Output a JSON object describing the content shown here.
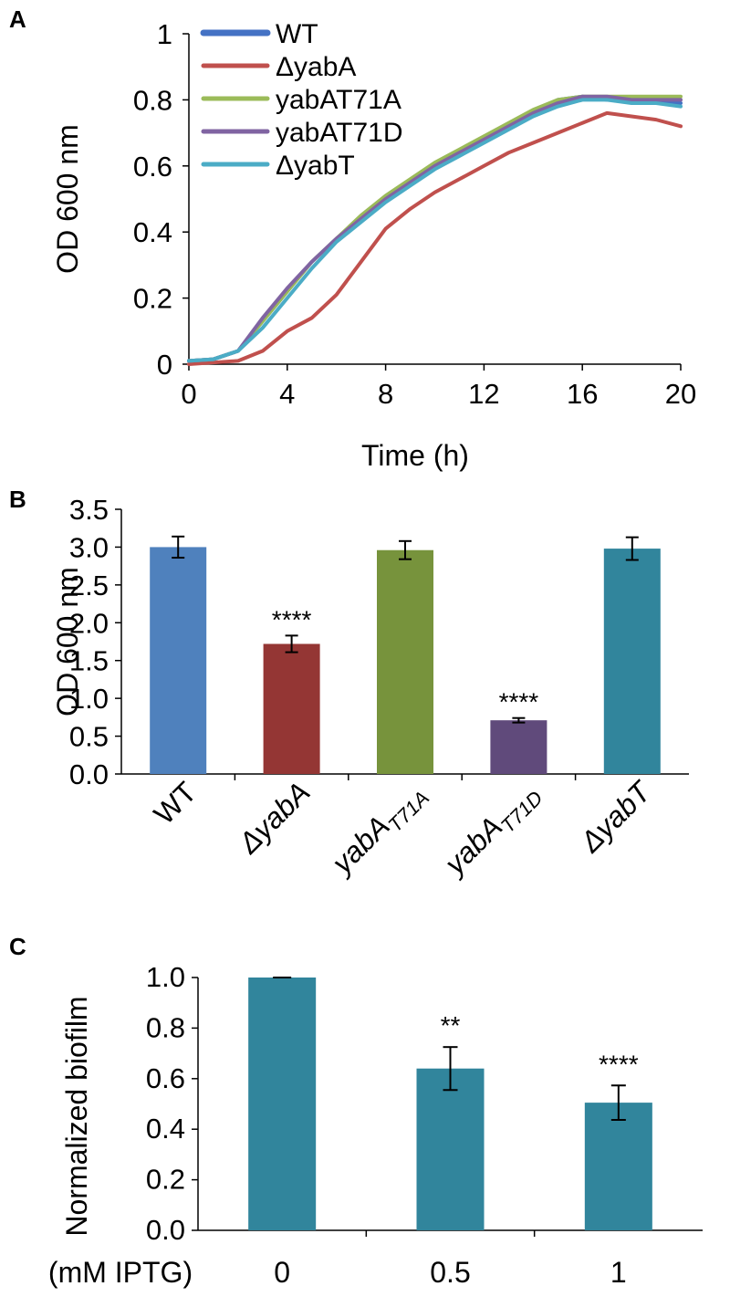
{
  "chart_data": [
    {
      "panel": "A",
      "type": "line",
      "xlabel": "Time (h)",
      "ylabel": "OD 600 nm",
      "xlim": [
        0,
        20
      ],
      "ylim": [
        0,
        1
      ],
      "xticks": [
        "0",
        "4",
        "8",
        "12",
        "16",
        "20"
      ],
      "yticks": [
        "0",
        "0.2",
        "0.4",
        "0.6",
        "0.8",
        "1"
      ],
      "legend_position": "top-left",
      "x": [
        0,
        1,
        2,
        3,
        4,
        5,
        6,
        7,
        8,
        9,
        10,
        11,
        12,
        13,
        14,
        15,
        16,
        17,
        18,
        19,
        20
      ],
      "series": [
        {
          "name": "WT",
          "color": "#4472c4",
          "values": [
            0.01,
            0.015,
            0.04,
            0.13,
            0.22,
            0.31,
            0.38,
            0.44,
            0.5,
            0.55,
            0.6,
            0.64,
            0.68,
            0.72,
            0.76,
            0.8,
            0.81,
            0.8,
            0.8,
            0.8,
            0.79
          ]
        },
        {
          "name": "ΔyabA",
          "color": "#c0504d",
          "values": [
            0.0,
            0.005,
            0.01,
            0.04,
            0.1,
            0.14,
            0.21,
            0.31,
            0.41,
            0.47,
            0.52,
            0.56,
            0.6,
            0.64,
            0.67,
            0.7,
            0.73,
            0.76,
            0.75,
            0.74,
            0.72
          ]
        },
        {
          "name": "yabAT71A",
          "color": "#9bbb59",
          "values": [
            0.01,
            0.015,
            0.04,
            0.13,
            0.22,
            0.31,
            0.38,
            0.45,
            0.51,
            0.56,
            0.61,
            0.65,
            0.69,
            0.73,
            0.77,
            0.8,
            0.81,
            0.81,
            0.81,
            0.81,
            0.81
          ]
        },
        {
          "name": "yabAT71D",
          "color": "#8064a2",
          "values": [
            0.01,
            0.015,
            0.04,
            0.14,
            0.23,
            0.31,
            0.38,
            0.44,
            0.5,
            0.55,
            0.6,
            0.64,
            0.68,
            0.72,
            0.76,
            0.79,
            0.81,
            0.81,
            0.8,
            0.8,
            0.8
          ]
        },
        {
          "name": "ΔyabT",
          "color": "#4bacc6",
          "values": [
            0.01,
            0.015,
            0.04,
            0.11,
            0.2,
            0.29,
            0.37,
            0.43,
            0.49,
            0.54,
            0.59,
            0.63,
            0.67,
            0.71,
            0.75,
            0.78,
            0.8,
            0.8,
            0.79,
            0.79,
            0.78
          ]
        }
      ]
    },
    {
      "panel": "B",
      "type": "bar",
      "xlabel": "",
      "ylabel": "OD 600 nm",
      "ylim": [
        0,
        3.5
      ],
      "yticks": [
        "0.0",
        "0.5",
        "1.0",
        "1.5",
        "2.0",
        "2.5",
        "3.0",
        "3.5"
      ],
      "categories": [
        {
          "main": "WT",
          "sub": ""
        },
        {
          "main": "ΔyabA",
          "sub": ""
        },
        {
          "main": "yabA",
          "sub": "T71A"
        },
        {
          "main": "yabA",
          "sub": "T71D"
        },
        {
          "main": "ΔyabT",
          "sub": ""
        }
      ],
      "values": [
        3.0,
        1.72,
        2.96,
        0.71,
        2.98
      ],
      "errors": [
        0.14,
        0.11,
        0.12,
        0.03,
        0.15
      ],
      "colors": [
        "#4f81bd",
        "#943634",
        "#77933c",
        "#604a7b",
        "#31859c"
      ],
      "significance": [
        "",
        "****",
        "",
        "****",
        ""
      ]
    },
    {
      "panel": "C",
      "type": "bar",
      "xlabel": "(mM IPTG)",
      "ylabel": "Normalized biofilm",
      "ylim": [
        0,
        1.0
      ],
      "yticks": [
        "0.0",
        "0.2",
        "0.4",
        "0.6",
        "0.8",
        "1.0"
      ],
      "categories": [
        "0",
        "0.5",
        "1"
      ],
      "values": [
        1.0,
        0.64,
        0.505
      ],
      "errors": [
        0.0,
        0.085,
        0.068
      ],
      "colors": [
        "#31859c",
        "#31859c",
        "#31859c"
      ],
      "significance": [
        "",
        "**",
        "****"
      ]
    }
  ]
}
